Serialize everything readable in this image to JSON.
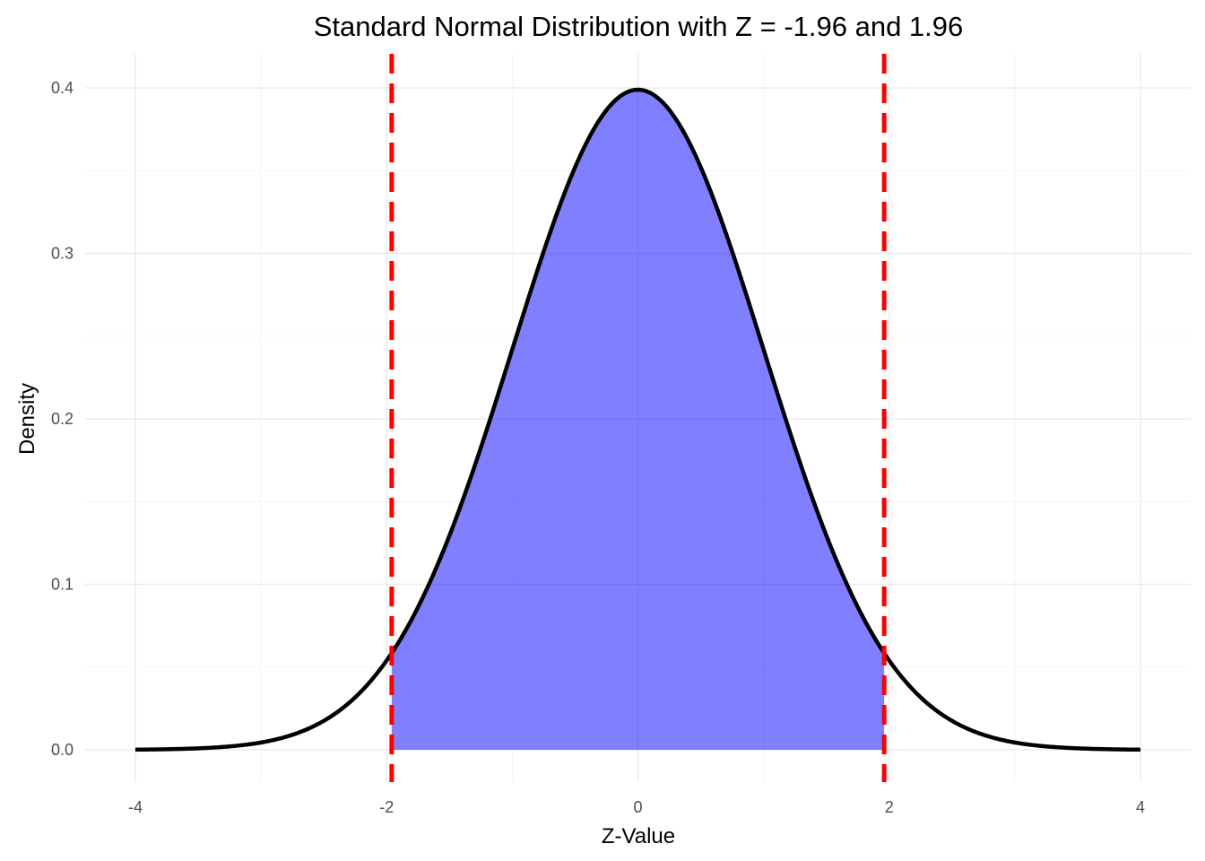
{
  "chart_data": {
    "type": "area",
    "title": "Standard Normal Distribution with Z = -1.96 and 1.96",
    "xlabel": "Z-Value",
    "ylabel": "Density",
    "xlim": [
      -4,
      4
    ],
    "ylim": [
      0,
      0.4
    ],
    "x_ticks": [
      -4,
      -2,
      0,
      2,
      4
    ],
    "x_tick_labels": [
      "-4",
      "-2",
      "0",
      "2",
      "4"
    ],
    "y_ticks": [
      0.0,
      0.1,
      0.2,
      0.3,
      0.4
    ],
    "y_tick_labels": [
      "0.0",
      "0.1",
      "0.2",
      "0.3",
      "0.4"
    ],
    "grid": true,
    "curve": {
      "x": [
        -4.0,
        -3.5,
        -3.0,
        -2.5,
        -2.0,
        -1.96,
        -1.5,
        -1.0,
        -0.5,
        0.0,
        0.5,
        1.0,
        1.5,
        1.96,
        2.0,
        2.5,
        3.0,
        3.5,
        4.0
      ],
      "y": [
        0.0001,
        0.0009,
        0.0044,
        0.0175,
        0.054,
        0.0584,
        0.1295,
        0.242,
        0.3521,
        0.3989,
        0.3521,
        0.242,
        0.1295,
        0.0584,
        0.054,
        0.0175,
        0.0044,
        0.0009,
        0.0001
      ],
      "color": "#000000"
    },
    "shaded_region": {
      "from": -1.96,
      "to": 1.96,
      "color": "#0000ff",
      "alpha": 0.5
    },
    "vlines": [
      {
        "x": -1.96,
        "color": "#ff0000",
        "style": "dashed"
      },
      {
        "x": 1.96,
        "color": "#ff0000",
        "style": "dashed"
      }
    ],
    "colors": {
      "grid_major": "#ebebeb",
      "grid_minor": "#f5f5f5"
    }
  }
}
